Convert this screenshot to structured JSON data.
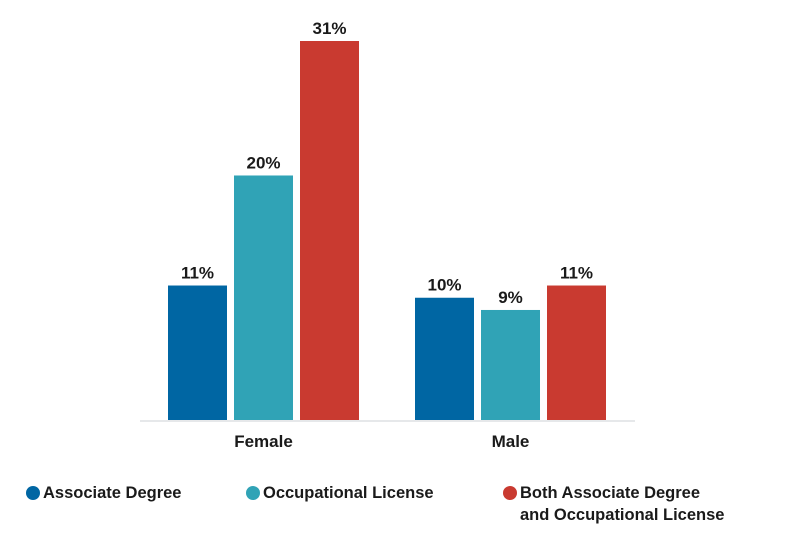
{
  "chart_data": {
    "type": "bar",
    "categories": [
      "Female",
      "Male"
    ],
    "series": [
      {
        "name": "Associate Degree",
        "values": [
          11,
          10
        ],
        "labels": [
          "11%",
          "10%"
        ],
        "color": "#0066a3"
      },
      {
        "name": "Occupational License",
        "values": [
          20,
          9
        ],
        "labels": [
          "20%",
          "9%"
        ],
        "color": "#30a3b6"
      },
      {
        "name": "Both Associate Degree and Occupational License",
        "values": [
          31,
          11
        ],
        "labels": [
          "31%",
          "11%"
        ],
        "color": "#c93a30"
      }
    ],
    "ylim": [
      0,
      31
    ],
    "grid": false,
    "legend_position": "bottom"
  },
  "legend": [
    {
      "lines": [
        "Associate Degree"
      ],
      "color": "#0066a3"
    },
    {
      "lines": [
        "Occupational License"
      ],
      "color": "#30a3b6"
    },
    {
      "lines": [
        "Both Associate Degree",
        "and Occupational License"
      ],
      "color": "#c93a30"
    }
  ]
}
